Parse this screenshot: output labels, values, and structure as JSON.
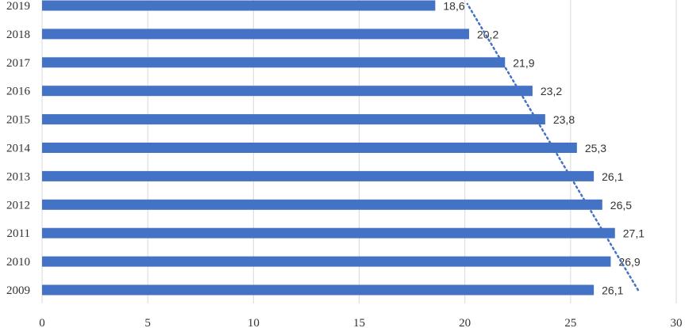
{
  "chart_data": {
    "type": "bar",
    "orientation": "horizontal",
    "title": "",
    "xlabel": "",
    "ylabel": "",
    "categories": [
      "2009",
      "2010",
      "2011",
      "2012",
      "2013",
      "2014",
      "2015",
      "2016",
      "2017",
      "2018",
      "2019"
    ],
    "values": [
      26.1,
      26.9,
      27.1,
      26.5,
      26.1,
      25.3,
      23.8,
      23.2,
      21.9,
      20.2,
      18.6
    ],
    "data_labels": [
      "26,1",
      "26,9",
      "27,1",
      "26,5",
      "26,1",
      "25,3",
      "23,8",
      "23,2",
      "21,9",
      "20,2",
      "18,6"
    ],
    "xlim": [
      0,
      30
    ],
    "xticks": [
      "0",
      "5",
      "10",
      "15",
      "20",
      "25",
      "30"
    ],
    "grid": "vertical",
    "legend": "none",
    "trendline": "linear, dotted",
    "colors": {
      "bar": "#4472C4",
      "trendline": "#4472C4",
      "grid": "#D9D9D9"
    }
  }
}
